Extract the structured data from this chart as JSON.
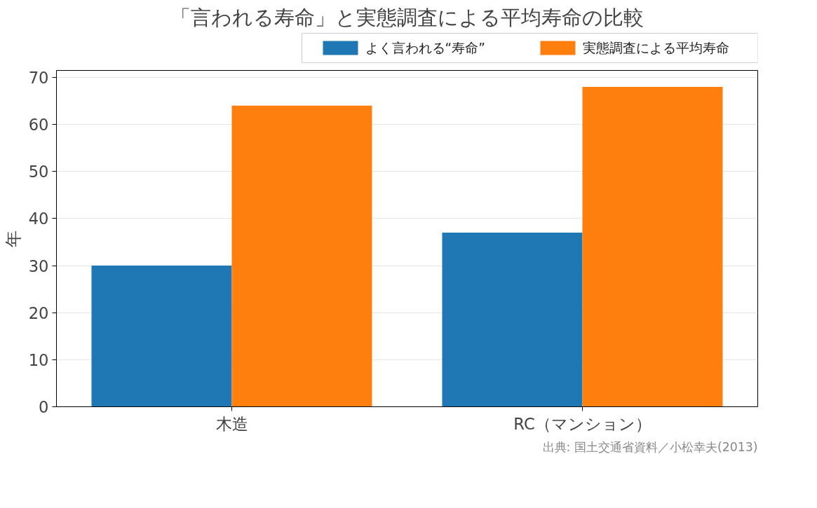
{
  "chart_data": {
    "type": "bar",
    "title": "「言われる寿命」と実態調査による平均寿命の比較",
    "ylabel": "年",
    "categories": [
      "木造",
      "RC（マンション）"
    ],
    "series": [
      {
        "name": "よく言われる“寿命”",
        "color": "#1f77b4",
        "values": [
          30,
          37
        ]
      },
      {
        "name": "実態調査による平均寿命",
        "color": "#ff7f0e",
        "values": [
          64,
          68
        ]
      }
    ],
    "ylim": [
      0,
      71.5
    ],
    "yticks": [
      0,
      10,
      20,
      30,
      40,
      50,
      60,
      70
    ],
    "grid": "y",
    "legend": "top",
    "annotations": [
      "出典: 国土交通省資料／小松幸夫(2013)"
    ]
  }
}
